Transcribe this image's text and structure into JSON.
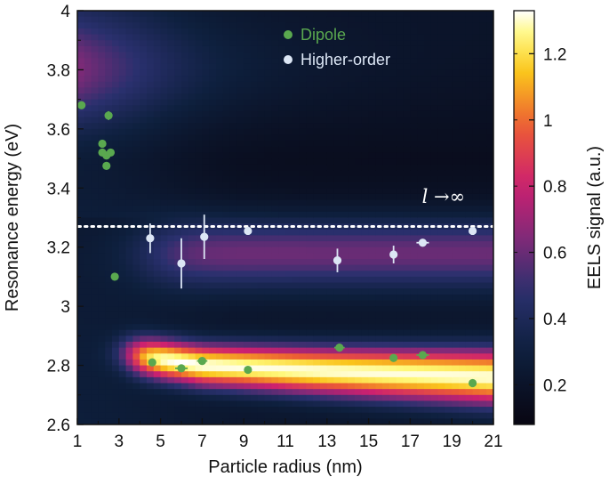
{
  "chart_data": {
    "type": "heatmap",
    "xlabel": "Particle radius (nm)",
    "ylabel": "Resonance energy (eV)",
    "xlim": [
      1,
      21
    ],
    "ylim": [
      2.6,
      4.0
    ],
    "x_ticks": [
      "1",
      "3",
      "5",
      "7",
      "9",
      "11",
      "13",
      "15",
      "17",
      "19",
      "21"
    ],
    "y_ticks": [
      "2.6",
      "2.8",
      "3",
      "3.2",
      "3.4",
      "3.6",
      "3.8",
      "4"
    ],
    "colorbar": {
      "label": "EELS signal (a.u.)",
      "range": [
        0.08,
        1.33
      ],
      "ticks": [
        "0.2",
        "0.4",
        "0.6",
        "0.8",
        "1",
        "1.2"
      ],
      "colormap": "inferno-like (black-navy-purple-magenta-orange-yellow-white)"
    },
    "heatmap_features": {
      "dipole_band_center_eV": [
        2.84,
        2.8,
        2.78,
        2.76
      ],
      "dipole_band_x": [
        3,
        7,
        13,
        21
      ],
      "higher_order_band_center_eV": 3.18,
      "high_energy_band_center_eV": 3.8
    },
    "annotation": {
      "text": "l →∞",
      "line_energy_eV": 3.27,
      "line_style": "dotted",
      "line_color": "#ffffff"
    },
    "legend": {
      "position": "top-center",
      "entries": [
        {
          "label": "Dipole",
          "color": "#5aa84f"
        },
        {
          "label": "Higher-order",
          "color": "#dce6f5"
        }
      ]
    },
    "series": [
      {
        "name": "Dipole",
        "color": "#5aa84f",
        "points": [
          {
            "x": 1.2,
            "y": 3.68
          },
          {
            "x": 2.2,
            "y": 3.55
          },
          {
            "x": 2.2,
            "y": 3.52
          },
          {
            "x": 2.4,
            "y": 3.51
          },
          {
            "x": 2.4,
            "y": 3.475
          },
          {
            "x": 2.5,
            "y": 3.645,
            "yerr": 0.015
          },
          {
            "x": 2.6,
            "y": 3.52
          },
          {
            "x": 2.8,
            "y": 3.1,
            "yerr": 0.01
          },
          {
            "x": 4.6,
            "y": 2.81,
            "xerr": 0.15
          },
          {
            "x": 6.0,
            "y": 2.79,
            "xerr": 0.3
          },
          {
            "x": 7.0,
            "y": 2.815,
            "xerr": 0.25
          },
          {
            "x": 9.2,
            "y": 2.785
          },
          {
            "x": 13.6,
            "y": 2.86,
            "xerr": 0.25
          },
          {
            "x": 16.2,
            "y": 2.825
          },
          {
            "x": 17.6,
            "y": 2.835,
            "xerr": 0.3
          },
          {
            "x": 20.0,
            "y": 2.74
          }
        ]
      },
      {
        "name": "Higher-order",
        "color": "#dce6f5",
        "points": [
          {
            "x": 4.5,
            "y": 3.23,
            "yerr": 0.05
          },
          {
            "x": 6.0,
            "y": 3.145,
            "yerr": 0.085
          },
          {
            "x": 7.1,
            "y": 3.235,
            "yerr": 0.075
          },
          {
            "x": 9.2,
            "y": 3.255
          },
          {
            "x": 13.5,
            "y": 3.155,
            "yerr": 0.04
          },
          {
            "x": 16.2,
            "y": 3.175,
            "yerr": 0.03
          },
          {
            "x": 17.6,
            "y": 3.215,
            "xerr": 0.3
          },
          {
            "x": 20.0,
            "y": 3.255,
            "xerr": 0.1
          }
        ]
      }
    ]
  }
}
